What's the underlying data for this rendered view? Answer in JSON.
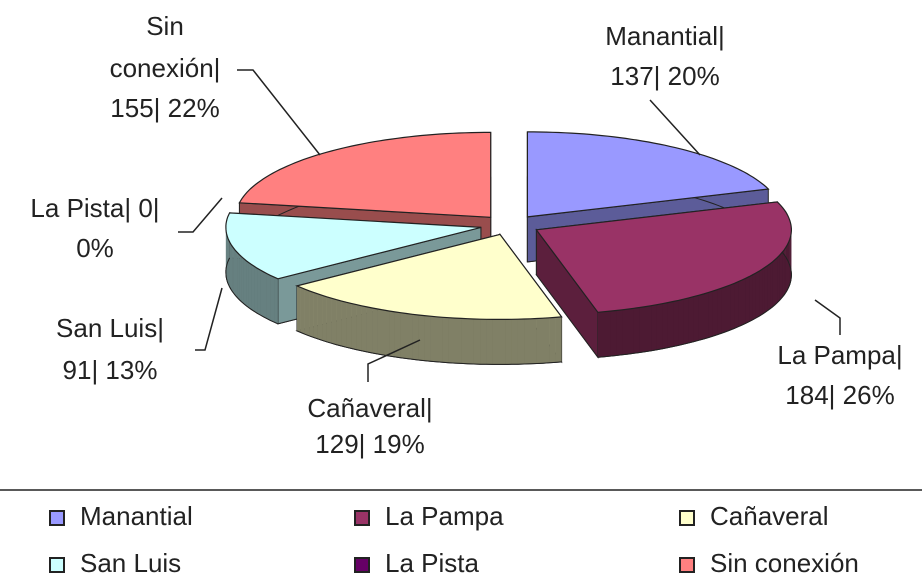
{
  "chart_data": {
    "type": "pie",
    "categories": [
      "Manantial",
      "La Pampa",
      "Cañaveral",
      "San Luis",
      "La Pista",
      "Sin conexión"
    ],
    "values": [
      137,
      184,
      129,
      91,
      0,
      155
    ],
    "value_labels": [
      [
        "Manantial|",
        "137| 20%"
      ],
      [
        "La Pampa|",
        "184| 26%"
      ],
      [
        "Cañaveral|",
        "129| 19%"
      ],
      [
        "San Luis|",
        "91| 13%"
      ],
      [
        "La Pista| 0|",
        "0%"
      ],
      [
        "Sin",
        "conexión|",
        "155| 22%"
      ]
    ],
    "colors": [
      "#9999ff",
      "#993366",
      "#ffffcc",
      "#ccffff",
      "#660066",
      "#ff8080"
    ],
    "legend": "bottom"
  }
}
